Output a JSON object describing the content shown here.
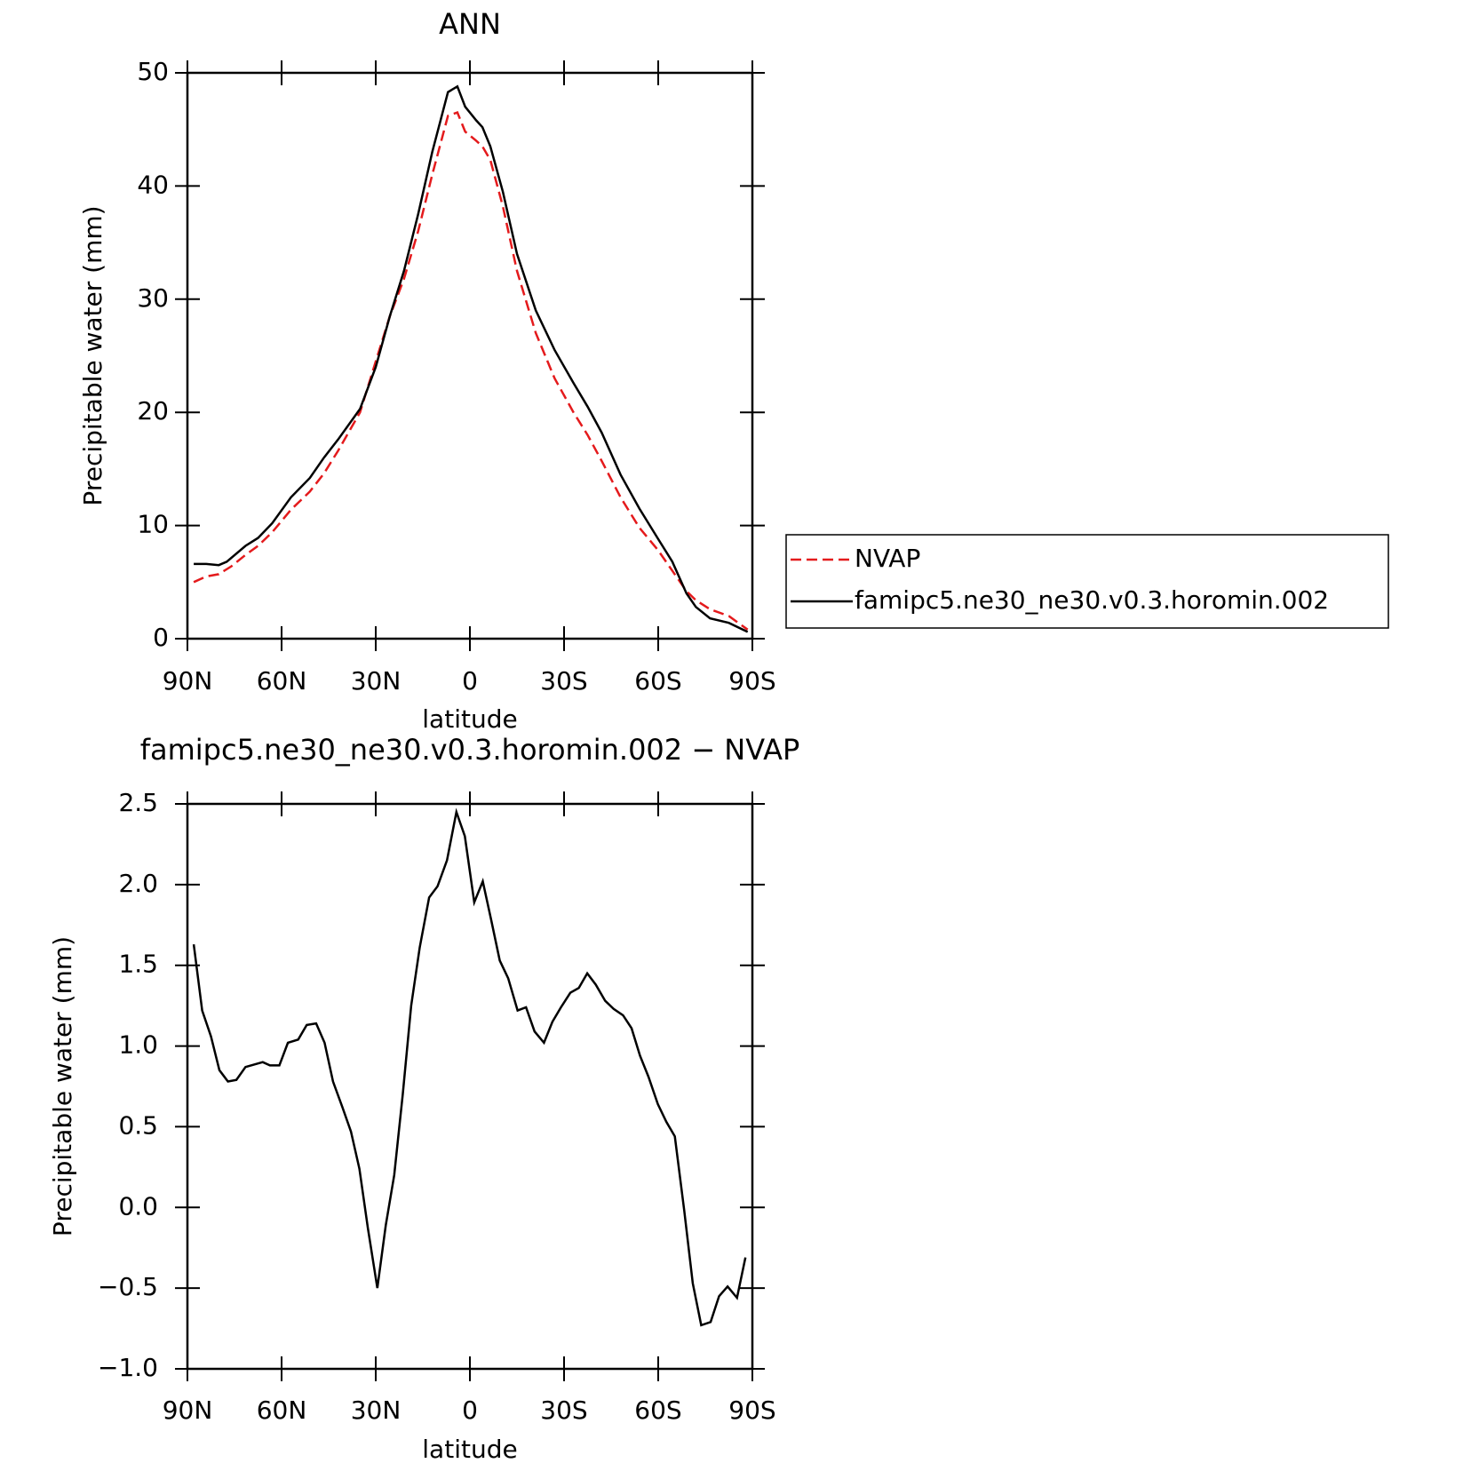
{
  "chart_data": [
    {
      "type": "line",
      "title": "ANN",
      "xlabel": "latitude",
      "ylabel": "Precipitable water (mm)",
      "xlim": [
        90,
        -90
      ],
      "xticks": [
        {
          "value": 90,
          "label": "90N"
        },
        {
          "value": 60,
          "label": "60N"
        },
        {
          "value": 30,
          "label": "30N"
        },
        0,
        {
          "value": -30,
          "label": "30S"
        },
        {
          "value": -60,
          "label": "60S"
        },
        {
          "value": -90,
          "label": "90S"
        }
      ],
      "ylim": [
        0,
        50
      ],
      "yticks": [
        0,
        10,
        20,
        30,
        40,
        50
      ],
      "series": [
        {
          "name": "NVAP",
          "color": "#e41a1c",
          "linestyle": "dashed",
          "x": [
            88,
            84,
            80,
            76,
            71.5,
            67.5,
            63,
            57,
            51,
            46.5,
            42,
            35,
            30,
            25.5,
            21,
            16.5,
            12,
            7,
            4,
            1.5,
            -2,
            -4,
            -6.5,
            -10.5,
            -15,
            -21,
            -27,
            -33,
            -37.5,
            -42,
            -48,
            -54,
            -60,
            -64.5,
            -69,
            -72,
            -76.5,
            -82.5,
            -88.5
          ],
          "values": [
            5.0,
            5.5,
            5.7,
            6.4,
            7.4,
            8.2,
            9.4,
            11.4,
            13.0,
            14.6,
            16.6,
            20.0,
            24.5,
            28.5,
            31.8,
            36.0,
            41.0,
            46.2,
            46.5,
            44.8,
            44.0,
            43.5,
            42.3,
            38.2,
            32.5,
            27.0,
            23.0,
            20.0,
            18.0,
            15.7,
            12.5,
            9.8,
            7.8,
            6.0,
            4.2,
            3.4,
            2.6,
            2.0,
            0.8
          ]
        },
        {
          "name": "famipc5.ne30_ne30.v0.3.horomin.002",
          "color": "#000000",
          "linestyle": "solid",
          "x": [
            88,
            84,
            80,
            77.5,
            71.5,
            67.5,
            63,
            57,
            51,
            46.5,
            42,
            35,
            30,
            25.5,
            21,
            16.5,
            12,
            7,
            4,
            1.5,
            -2,
            -4,
            -6.5,
            -10.5,
            -15,
            -21,
            -27,
            -33,
            -37.5,
            -42,
            -48,
            -54,
            -60,
            -64.5,
            -69,
            -72,
            -76.5,
            -82.5,
            -88.5
          ],
          "values": [
            6.6,
            6.6,
            6.5,
            6.8,
            8.2,
            8.9,
            10.2,
            12.5,
            14.2,
            16.0,
            17.6,
            20.3,
            24.0,
            28.5,
            32.5,
            37.5,
            43.0,
            48.3,
            48.8,
            47.0,
            45.8,
            45.2,
            43.5,
            39.5,
            34.0,
            29.0,
            25.5,
            22.6,
            20.5,
            18.2,
            14.5,
            11.5,
            8.8,
            6.8,
            4.0,
            2.8,
            1.8,
            1.4,
            0.6
          ]
        }
      ]
    },
    {
      "type": "line",
      "title": "famipc5.ne30_ne30.v0.3.horomin.002 − NVAP",
      "xlabel": "latitude",
      "ylabel": "Precipitable water (mm)",
      "xlim": [
        90,
        -90
      ],
      "xticks": [
        {
          "value": 90,
          "label": "90N"
        },
        {
          "value": 60,
          "label": "60N"
        },
        {
          "value": 30,
          "label": "30N"
        },
        0,
        {
          "value": -30,
          "label": "30S"
        },
        {
          "value": -60,
          "label": "60S"
        },
        {
          "value": -90,
          "label": "90S"
        }
      ],
      "ylim": [
        -1.0,
        2.5
      ],
      "yticks": [
        {
          "value": -1.0,
          "label": "−1.0"
        },
        {
          "value": -0.5,
          "label": "−0.5"
        },
        {
          "value": 0.0,
          "label": "0.0"
        },
        0.5,
        {
          "value": 1.0,
          "label": "1.0"
        },
        1.5,
        {
          "value": 2.0,
          "label": "2.0"
        },
        2.5
      ],
      "series": [
        {
          "color": "#000000",
          "linestyle": "solid",
          "x": [
            88,
            85.3,
            82.5,
            79.8,
            77.1,
            74.4,
            71.5,
            66,
            63.7,
            60.7,
            58,
            54.7,
            52,
            49,
            46.3,
            43.6,
            40.6,
            37.9,
            35.2,
            32.5,
            29.5,
            26.8,
            24.1,
            21.4,
            18.7,
            16,
            13,
            10.3,
            7.3,
            4.3,
            1.6,
            -1.4,
            -4.1,
            -6.8,
            -9.5,
            -12.2,
            -15.2,
            -17.9,
            -20.6,
            -23.6,
            -26.3,
            -29,
            -32,
            -34.7,
            -37.4,
            -40.1,
            -43.1,
            -45.8,
            -48.8,
            -51.5,
            -54.2,
            -56.9,
            -59.9,
            -62.6,
            -65.3,
            -68.3,
            -71,
            -73.7,
            -76.7,
            -79.4,
            -82.1,
            -85.1,
            -87.8
          ],
          "values": [
            1.63,
            1.22,
            1.06,
            0.85,
            0.78,
            0.79,
            0.87,
            0.9,
            0.88,
            0.88,
            1.02,
            1.04,
            1.13,
            1.14,
            1.02,
            0.78,
            0.62,
            0.47,
            0.24,
            -0.13,
            -0.5,
            -0.11,
            0.2,
            0.7,
            1.25,
            1.61,
            1.92,
            1.99,
            2.15,
            2.45,
            2.3,
            1.89,
            2.02,
            1.78,
            1.53,
            1.42,
            1.22,
            1.24,
            1.09,
            1.02,
            1.15,
            1.24,
            1.33,
            1.36,
            1.45,
            1.38,
            1.28,
            1.23,
            1.19,
            1.11,
            0.94,
            0.81,
            0.64,
            0.53,
            0.44,
            -0.02,
            -0.47,
            -0.73,
            -0.71,
            -0.55,
            -0.49,
            -0.56,
            -0.31
          ]
        }
      ]
    }
  ]
}
